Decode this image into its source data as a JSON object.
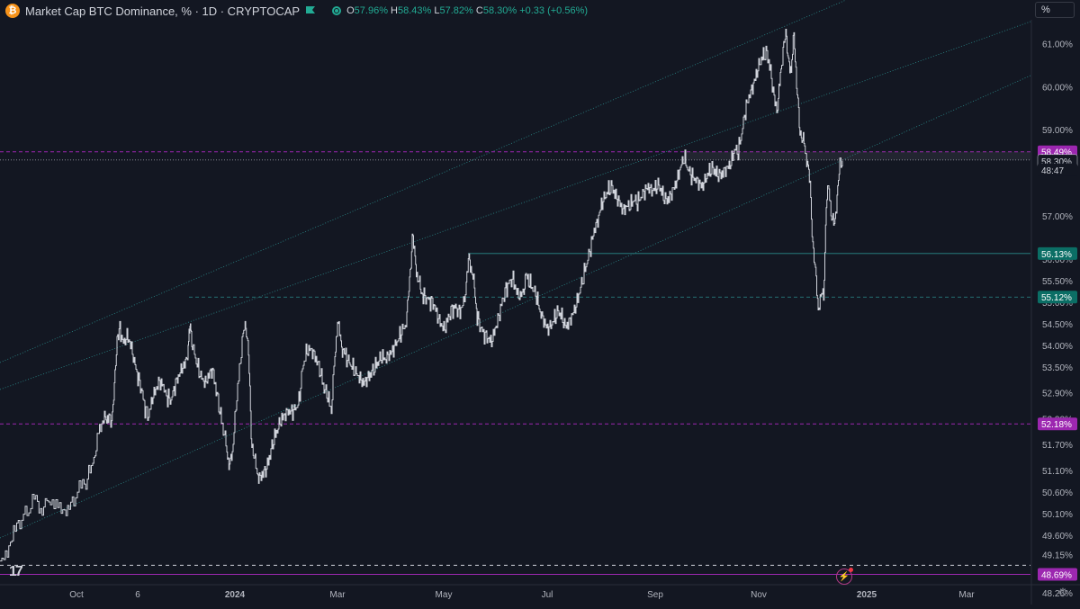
{
  "header": {
    "title": "Market Cap BTC Dominance, % · 1D · CRYPTOCAP",
    "logo_letter": "₿",
    "ohlc": {
      "open_label": "O",
      "open": "57.96%",
      "high_label": "H",
      "high": "58.43%",
      "low_label": "L",
      "low": "57.82%",
      "close_label": "C",
      "close": "58.30%",
      "change": "+0.33 (+0.56%)"
    },
    "unit_button": "%"
  },
  "colors": {
    "background": "#131722",
    "price_line": "#d1d4dc",
    "channel": "#2a8a8a",
    "purple": "#9c27b0",
    "teal_label": "#0b6e65",
    "grid_text": "#b2b5be"
  },
  "chart_data": {
    "type": "line",
    "title": "Market Cap BTC Dominance, % · 1D · CRYPTOCAP",
    "xlabel": "",
    "ylabel": "",
    "x_ticks": [
      "Oct",
      "6",
      "2024",
      "Mar",
      "May",
      "Jul",
      "Sep",
      "Nov",
      "2025",
      "Mar"
    ],
    "x_tick_bold": [
      "2024",
      "2025"
    ],
    "y_ticks": [
      "61.00%",
      "60.00%",
      "59.00%",
      "57.00%",
      "56.00%",
      "55.50%",
      "55.00%",
      "54.50%",
      "54.00%",
      "53.50%",
      "52.90%",
      "52.30%",
      "51.70%",
      "51.10%",
      "50.60%",
      "50.10%",
      "49.60%",
      "49.15%",
      "48.26%"
    ],
    "price_labels": [
      {
        "text": "58.49%",
        "style": "purple"
      },
      {
        "text": "58.30%",
        "style": "current"
      },
      {
        "text": "48:47",
        "style": "countdown"
      },
      {
        "text": "56.13%",
        "style": "teal"
      },
      {
        "text": "55.12%",
        "style": "teal"
      },
      {
        "text": "52.18%",
        "style": "purple"
      },
      {
        "text": "48.69%",
        "style": "purple"
      }
    ],
    "series": [
      {
        "values": [
          [
            0,
            49.0
          ],
          [
            8,
            49.3
          ],
          [
            15,
            49.6
          ],
          [
            22,
            49.9
          ],
          [
            30,
            50.1
          ],
          [
            38,
            50.4
          ],
          [
            45,
            50.2
          ],
          [
            52,
            50.5
          ],
          [
            60,
            50.4
          ],
          [
            68,
            50.3
          ],
          [
            75,
            50.1
          ],
          [
            82,
            50.4
          ],
          [
            90,
            50.7
          ],
          [
            97,
            50.9
          ],
          [
            103,
            51.3
          ],
          [
            108,
            51.8
          ],
          [
            113,
            52.1
          ],
          [
            117,
            52.3
          ],
          [
            120,
            52.4
          ],
          [
            124,
            52.3
          ],
          [
            127,
            52.9
          ],
          [
            130,
            54.2
          ],
          [
            133,
            54.4
          ],
          [
            137,
            54.1
          ],
          [
            141,
            54.3
          ],
          [
            145,
            54.1
          ],
          [
            149,
            53.7
          ],
          [
            153,
            53.3
          ],
          [
            157,
            53.0
          ],
          [
            161,
            52.5
          ],
          [
            165,
            52.3
          ],
          [
            169,
            52.7
          ],
          [
            173,
            52.9
          ],
          [
            177,
            53.1
          ],
          [
            181,
            53.0
          ],
          [
            186,
            52.8
          ],
          [
            190,
            52.7
          ],
          [
            194,
            53.0
          ],
          [
            198,
            53.2
          ],
          [
            202,
            53.4
          ],
          [
            206,
            53.5
          ],
          [
            209,
            54.0
          ],
          [
            211,
            54.6
          ],
          [
            213,
            54.2
          ],
          [
            216,
            53.8
          ],
          [
            220,
            53.5
          ],
          [
            224,
            53.3
          ],
          [
            228,
            53.2
          ],
          [
            232,
            53.4
          ],
          [
            236,
            53.5
          ],
          [
            240,
            53.0
          ],
          [
            244,
            52.5
          ],
          [
            248,
            52.0
          ],
          [
            252,
            51.6
          ],
          [
            255,
            51.2
          ],
          [
            258,
            51.4
          ],
          [
            262,
            52.5
          ],
          [
            266,
            53.4
          ],
          [
            270,
            54.2
          ],
          [
            273,
            54.6
          ],
          [
            276,
            53.8
          ],
          [
            279,
            52.0
          ],
          [
            282,
            51.4
          ],
          [
            285,
            51.1
          ],
          [
            288,
            51.0
          ],
          [
            292,
            51.1
          ],
          [
            296,
            51.2
          ],
          [
            300,
            51.5
          ],
          [
            304,
            51.8
          ],
          [
            308,
            52.0
          ],
          [
            312,
            52.2
          ],
          [
            316,
            52.3
          ],
          [
            320,
            52.4
          ],
          [
            324,
            52.4
          ],
          [
            328,
            52.5
          ],
          [
            332,
            52.7
          ],
          [
            336,
            53.5
          ],
          [
            340,
            53.9
          ],
          [
            344,
            54.0
          ],
          [
            348,
            53.9
          ],
          [
            352,
            53.7
          ],
          [
            356,
            53.4
          ],
          [
            360,
            53.0
          ],
          [
            364,
            52.8
          ],
          [
            368,
            52.4
          ],
          [
            372,
            53.8
          ],
          [
            375,
            54.6
          ],
          [
            378,
            54.1
          ],
          [
            381,
            53.9
          ],
          [
            384,
            53.7
          ],
          [
            388,
            53.6
          ],
          [
            392,
            53.5
          ],
          [
            396,
            53.4
          ],
          [
            400,
            53.3
          ],
          [
            404,
            53.2
          ],
          [
            408,
            53.3
          ],
          [
            412,
            53.4
          ],
          [
            416,
            53.5
          ],
          [
            420,
            53.6
          ],
          [
            424,
            53.7
          ],
          [
            428,
            53.6
          ],
          [
            432,
            53.7
          ],
          [
            436,
            53.8
          ],
          [
            440,
            54.0
          ],
          [
            444,
            54.2
          ],
          [
            448,
            54.4
          ],
          [
            452,
            54.6
          ],
          [
            455,
            55.5
          ],
          [
            458,
            56.5
          ],
          [
            461,
            56.0
          ],
          [
            464,
            55.6
          ],
          [
            467,
            55.3
          ],
          [
            470,
            55.2
          ],
          [
            474,
            55.1
          ],
          [
            478,
            55.0
          ],
          [
            482,
            54.9
          ],
          [
            486,
            54.6
          ],
          [
            490,
            54.4
          ],
          [
            494,
            54.3
          ],
          [
            498,
            54.6
          ],
          [
            502,
            54.8
          ],
          [
            506,
            54.9
          ],
          [
            510,
            54.8
          ],
          [
            514,
            55.0
          ],
          [
            518,
            55.4
          ],
          [
            521,
            56.0
          ],
          [
            524,
            55.8
          ],
          [
            527,
            55.3
          ],
          [
            530,
            54.7
          ],
          [
            534,
            54.4
          ],
          [
            538,
            54.2
          ],
          [
            542,
            54.1
          ],
          [
            546,
            54.0
          ],
          [
            550,
            54.3
          ],
          [
            554,
            54.6
          ],
          [
            558,
            55.0
          ],
          [
            562,
            55.3
          ],
          [
            566,
            55.5
          ],
          [
            570,
            55.6
          ],
          [
            574,
            55.3
          ],
          [
            578,
            55.2
          ],
          [
            582,
            55.4
          ],
          [
            585,
            55.6
          ],
          [
            588,
            55.5
          ],
          [
            592,
            55.3
          ],
          [
            596,
            55.1
          ],
          [
            600,
            54.7
          ],
          [
            604,
            54.5
          ],
          [
            608,
            54.3
          ],
          [
            612,
            54.4
          ],
          [
            616,
            54.6
          ],
          [
            620,
            54.8
          ],
          [
            624,
            54.7
          ],
          [
            628,
            54.5
          ],
          [
            632,
            54.6
          ],
          [
            636,
            54.8
          ],
          [
            640,
            55.0
          ],
          [
            644,
            55.3
          ],
          [
            648,
            55.6
          ],
          [
            652,
            55.9
          ],
          [
            656,
            56.2
          ],
          [
            660,
            56.6
          ],
          [
            664,
            56.8
          ],
          [
            668,
            57.2
          ],
          [
            672,
            57.4
          ],
          [
            676,
            57.6
          ],
          [
            680,
            57.7
          ],
          [
            684,
            57.5
          ],
          [
            688,
            57.4
          ],
          [
            692,
            57.2
          ],
          [
            696,
            57.3
          ],
          [
            700,
            57.3
          ],
          [
            704,
            57.4
          ],
          [
            708,
            57.3
          ],
          [
            712,
            57.4
          ],
          [
            716,
            57.5
          ],
          [
            720,
            57.6
          ],
          [
            724,
            57.5
          ],
          [
            728,
            57.6
          ],
          [
            732,
            57.7
          ],
          [
            736,
            57.5
          ],
          [
            740,
            57.4
          ],
          [
            744,
            57.5
          ],
          [
            748,
            57.7
          ],
          [
            752,
            57.9
          ],
          [
            756,
            58.2
          ],
          [
            760,
            58.4
          ],
          [
            764,
            58.1
          ],
          [
            768,
            57.9
          ],
          [
            772,
            57.8
          ],
          [
            776,
            57.7
          ],
          [
            780,
            57.6
          ],
          [
            784,
            57.8
          ],
          [
            788,
            58.0
          ],
          [
            792,
            58.1
          ],
          [
            796,
            58.0
          ],
          [
            800,
            58.0
          ],
          [
            804,
            58.1
          ],
          [
            808,
            58.2
          ],
          [
            812,
            58.3
          ],
          [
            816,
            58.6
          ],
          [
            820,
            58.5
          ],
          [
            824,
            58.9
          ],
          [
            828,
            59.4
          ],
          [
            832,
            59.7
          ],
          [
            836,
            59.9
          ],
          [
            840,
            60.2
          ],
          [
            844,
            60.5
          ],
          [
            848,
            60.7
          ],
          [
            852,
            60.8
          ],
          [
            856,
            60.4
          ],
          [
            860,
            59.8
          ],
          [
            864,
            59.5
          ],
          [
            867,
            60.2
          ],
          [
            870,
            60.9
          ],
          [
            873,
            61.1
          ],
          [
            876,
            60.7
          ],
          [
            879,
            60.2
          ],
          [
            882,
            61.4
          ],
          [
            885,
            60.0
          ],
          [
            888,
            59.2
          ],
          [
            891,
            58.8
          ],
          [
            894,
            58.6
          ],
          [
            897,
            58.3
          ],
          [
            900,
            57.6
          ],
          [
            903,
            56.4
          ],
          [
            906,
            55.6
          ],
          [
            909,
            54.9
          ],
          [
            912,
            55.1
          ],
          [
            915,
            55.2
          ],
          [
            918,
            57.3
          ],
          [
            921,
            57.7
          ],
          [
            924,
            57.0
          ],
          [
            927,
            56.7
          ],
          [
            930,
            57.5
          ],
          [
            933,
            58.1
          ],
          [
            936,
            58.3
          ]
        ]
      }
    ],
    "ylim": [
      48.45,
      61.55
    ],
    "xlim": [
      0,
      1145
    ],
    "grid": false
  }
}
